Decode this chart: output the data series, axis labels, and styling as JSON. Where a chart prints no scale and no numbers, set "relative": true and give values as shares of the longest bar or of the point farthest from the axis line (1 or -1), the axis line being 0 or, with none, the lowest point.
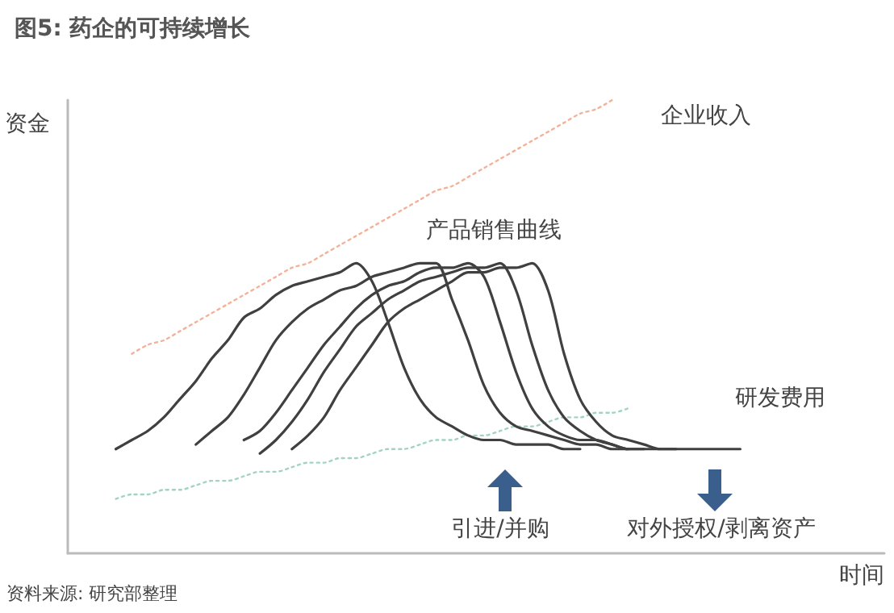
{
  "chart_data": {
    "type": "line",
    "title": "图5: 药企的可持续增长",
    "xlabel": "时间",
    "ylabel": "资金",
    "relative": true,
    "grid": false,
    "legend": false,
    "marker": "none",
    "categories": [
      null,
      null,
      null,
      null,
      null,
      null,
      null,
      null,
      null,
      null,
      null,
      null,
      null,
      null,
      null,
      null,
      null,
      null,
      null,
      null,
      null,
      null,
      null,
      null,
      null,
      null,
      null,
      null,
      null,
      null,
      null,
      null,
      null,
      null,
      null,
      null,
      null,
      null,
      null,
      null,
      null,
      null,
      null,
      null,
      null,
      null,
      null,
      null,
      null,
      null,
      null,
      null
    ],
    "annotations": [
      "产品销售曲线",
      "引进/并购",
      "对外授权/剥离资产",
      "资料来源: 研究部整理"
    ],
    "series": [
      {
        "name": "企业收入",
        "color": "#f4b19a",
        "line_style": "dotted",
        "values": [
          null,
          null,
          null,
          null,
          0.44,
          0.46,
          0.47,
          0.49,
          0.51,
          0.53,
          0.55,
          0.57,
          0.59,
          0.61,
          0.63,
          0.64,
          0.66,
          0.68,
          0.7,
          0.72,
          0.74,
          0.76,
          0.78,
          0.8,
          0.81,
          0.83,
          0.85,
          0.87,
          0.89,
          0.91,
          0.93,
          0.95,
          0.97,
          0.98,
          1,
          null,
          null,
          null,
          null,
          null,
          null,
          null,
          null,
          null,
          null,
          null,
          null,
          null,
          null,
          null,
          null,
          null
        ]
      },
      {
        "name": "研发费用",
        "color": "#a3d4c3",
        "line_style": "dotted",
        "values": [
          null,
          null,
          null,
          0.12,
          0.13,
          0.13,
          0.14,
          0.14,
          0.15,
          0.16,
          0.16,
          0.17,
          0.18,
          0.18,
          0.19,
          0.2,
          0.2,
          0.21,
          0.21,
          0.22,
          0.23,
          0.23,
          0.24,
          0.25,
          0.25,
          0.26,
          0.26,
          0.27,
          0.28,
          0.28,
          0.29,
          0.3,
          0.3,
          0.31,
          0.31,
          0.32,
          null,
          null,
          null,
          null,
          null,
          null,
          null,
          null,
          null,
          null,
          null,
          null,
          null,
          null,
          null,
          null
        ]
      },
      {
        "color": "#404040",
        "values": [
          null,
          null,
          null,
          0.23,
          0.25,
          0.27,
          0.3,
          0.34,
          0.38,
          0.43,
          0.47,
          0.52,
          0.54,
          0.57,
          0.59,
          0.6,
          0.61,
          0.62,
          0.64,
          0.6,
          0.51,
          0.41,
          0.34,
          0.3,
          0.28,
          0.26,
          0.25,
          0.25,
          0.24,
          0.24,
          0.24,
          0.23,
          0.23,
          null,
          null,
          null,
          null,
          null,
          null,
          null,
          null,
          null,
          null,
          null,
          null,
          null,
          null,
          null,
          null,
          null,
          null,
          null
        ]
      },
      {
        "color": "#404040",
        "values": [
          null,
          null,
          null,
          null,
          null,
          null,
          null,
          null,
          0.24,
          0.27,
          0.3,
          0.35,
          0.41,
          0.47,
          0.51,
          0.54,
          0.56,
          0.58,
          0.59,
          0.61,
          0.62,
          0.63,
          0.64,
          0.64,
          0.56,
          0.47,
          0.37,
          0.31,
          0.28,
          0.27,
          0.26,
          0.25,
          0.24,
          0.24,
          0.23,
          0.23,
          null,
          null,
          null,
          null,
          null,
          null,
          null,
          null,
          null,
          null,
          null,
          null,
          null,
          null,
          null,
          null
        ]
      },
      {
        "color": "#404040",
        "values": [
          null,
          null,
          null,
          null,
          null,
          null,
          null,
          null,
          null,
          null,
          null,
          0.25,
          0.27,
          0.31,
          0.36,
          0.41,
          0.46,
          0.5,
          0.54,
          0.57,
          0.59,
          0.6,
          0.62,
          0.63,
          0.63,
          0.64,
          0.61,
          0.51,
          0.4,
          0.32,
          0.28,
          0.26,
          0.25,
          0.25,
          0.24,
          0.23,
          0.23,
          null,
          null,
          null,
          null,
          null,
          null,
          null,
          null,
          null,
          null,
          null,
          null,
          null,
          null,
          null
        ]
      },
      {
        "color": "#404040",
        "values": [
          null,
          null,
          null,
          null,
          null,
          null,
          null,
          null,
          null,
          null,
          null,
          null,
          0.22,
          0.25,
          0.29,
          0.34,
          0.4,
          0.45,
          0.5,
          0.53,
          0.56,
          0.58,
          0.6,
          0.61,
          0.62,
          0.63,
          0.63,
          0.64,
          0.58,
          0.46,
          0.36,
          0.3,
          0.27,
          0.25,
          0.24,
          0.23,
          0.23,
          0.23,
          0.23,
          null,
          null,
          null,
          null,
          null,
          null,
          null,
          null,
          null,
          null,
          null,
          null,
          null
        ]
      },
      {
        "color": "#404040",
        "values": [
          null,
          null,
          null,
          null,
          null,
          null,
          null,
          null,
          null,
          null,
          null,
          null,
          null,
          null,
          0.23,
          0.26,
          0.3,
          0.36,
          0.41,
          0.46,
          0.51,
          0.54,
          0.56,
          0.58,
          0.6,
          0.62,
          0.62,
          0.63,
          0.63,
          0.64,
          0.58,
          0.44,
          0.34,
          0.29,
          0.26,
          0.25,
          0.24,
          0.23,
          0.23,
          0.23,
          0.23,
          0.23,
          0.23,
          null,
          null,
          null,
          null,
          null,
          null,
          null,
          null,
          null
        ]
      }
    ]
  }
}
